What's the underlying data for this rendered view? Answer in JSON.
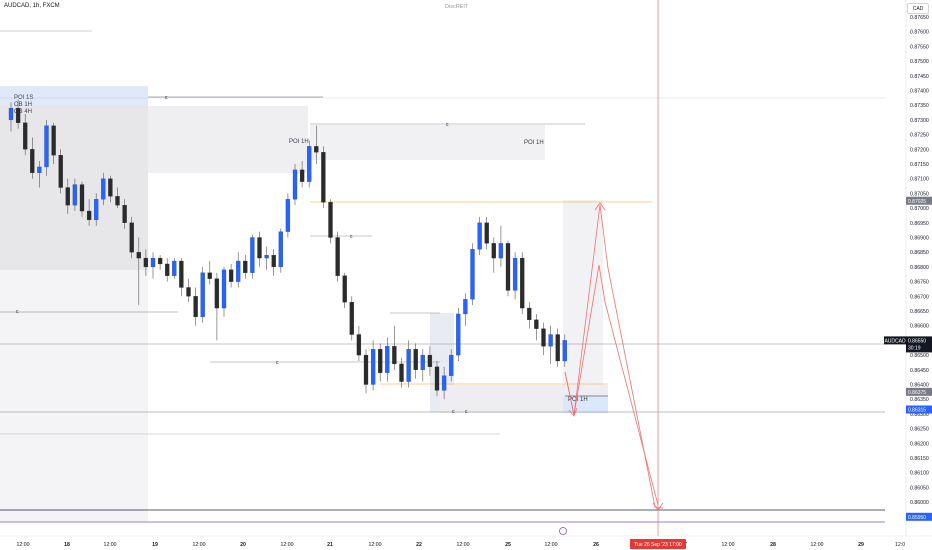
{
  "header": {
    "ticker": "AUDCAD, 1h, FXCM",
    "watermark": "DiscREIT",
    "currency": "CAD"
  },
  "chart_data": {
    "type": "candlestick",
    "y_axis": {
      "ticks": [
        "0.87650",
        "0.87600",
        "0.87550",
        "0.87500",
        "0.87450",
        "0.87400",
        "0.87350",
        "0.87300",
        "0.87250",
        "0.87200",
        "0.87150",
        "0.87100",
        "0.87050",
        "0.87000",
        "0.86950",
        "0.86900",
        "0.86850",
        "0.86800",
        "0.86750",
        "0.86700",
        "0.86650",
        "0.86600",
        "0.86550",
        "0.86500",
        "0.86450",
        "0.86400",
        "0.86350",
        "0.86300",
        "0.86250",
        "0.86200",
        "0.86150",
        "0.86100",
        "0.86050",
        "0.86000",
        "0.85950"
      ],
      "range": [
        0.85935,
        0.8768
      ]
    },
    "x_axis": {
      "labels": [
        "12:00",
        "18",
        "12:00",
        "19",
        "12:00",
        "20",
        "12:00",
        "21",
        "12:00",
        "22",
        "12:00",
        "25",
        "12:00",
        "26",
        "12:00",
        "27",
        "12:00",
        "28",
        "12:00",
        "29",
        "12:0"
      ],
      "crosshair_label": "Tue 26 Sep '23   17:00"
    },
    "price_tags": [
      {
        "price": "0.87025",
        "kind": "gray"
      },
      {
        "price": "0.86550",
        "kind": "dark",
        "countdown": "30:19",
        "name": "AUDCAD"
      },
      {
        "price": "0.86375",
        "kind": "gray"
      },
      {
        "price": "0.86315",
        "kind": "blue"
      },
      {
        "price": "0.85950",
        "kind": "blue"
      }
    ],
    "zone_labels": [
      "POI 1S",
      "OB 1H",
      "OB 4H",
      "POI 1H",
      "POI 1H",
      "POI 1H"
    ],
    "candles": [
      [
        0.873,
        0.8736,
        0.8726,
        0.8734
      ],
      [
        0.8734,
        0.8737,
        0.8727,
        0.8729
      ],
      [
        0.8729,
        0.8732,
        0.8718,
        0.872
      ],
      [
        0.872,
        0.8724,
        0.871,
        0.8712
      ],
      [
        0.8712,
        0.8716,
        0.8707,
        0.8714
      ],
      [
        0.8714,
        0.873,
        0.8711,
        0.8728
      ],
      [
        0.8728,
        0.8729,
        0.8715,
        0.8718
      ],
      [
        0.8718,
        0.872,
        0.8705,
        0.8707
      ],
      [
        0.8707,
        0.871,
        0.8698,
        0.8701
      ],
      [
        0.8701,
        0.871,
        0.8699,
        0.8708
      ],
      [
        0.8708,
        0.8709,
        0.8697,
        0.8699
      ],
      [
        0.8699,
        0.8703,
        0.8694,
        0.8696
      ],
      [
        0.8696,
        0.8705,
        0.8694,
        0.8703
      ],
      [
        0.8703,
        0.8712,
        0.8701,
        0.871
      ],
      [
        0.871,
        0.8711,
        0.8702,
        0.8704
      ],
      [
        0.8704,
        0.8707,
        0.87,
        0.8701
      ],
      [
        0.8701,
        0.8703,
        0.8693,
        0.8695
      ],
      [
        0.8695,
        0.8697,
        0.8683,
        0.8685
      ],
      [
        0.8685,
        0.869,
        0.8667,
        0.8683
      ],
      [
        0.8683,
        0.8686,
        0.8677,
        0.868
      ],
      [
        0.868,
        0.8685,
        0.8676,
        0.8683
      ],
      [
        0.8683,
        0.8684,
        0.8679,
        0.8681
      ],
      [
        0.8681,
        0.8683,
        0.8675,
        0.8677
      ],
      [
        0.8677,
        0.8683,
        0.8676,
        0.8682
      ],
      [
        0.8682,
        0.8683,
        0.867,
        0.8673
      ],
      [
        0.8673,
        0.8676,
        0.8668,
        0.867
      ],
      [
        0.867,
        0.8673,
        0.866,
        0.8663
      ],
      [
        0.8663,
        0.868,
        0.8661,
        0.8678
      ],
      [
        0.8678,
        0.8682,
        0.8674,
        0.8676
      ],
      [
        0.8676,
        0.8678,
        0.8655,
        0.8666
      ],
      [
        0.8666,
        0.868,
        0.8663,
        0.8679
      ],
      [
        0.8679,
        0.8681,
        0.8673,
        0.8675
      ],
      [
        0.8675,
        0.8685,
        0.8673,
        0.8682
      ],
      [
        0.8682,
        0.8684,
        0.8676,
        0.8678
      ],
      [
        0.8678,
        0.8691,
        0.8676,
        0.869
      ],
      [
        0.869,
        0.8692,
        0.868,
        0.8683
      ],
      [
        0.8683,
        0.8687,
        0.8679,
        0.8684
      ],
      [
        0.8684,
        0.8686,
        0.8677,
        0.868
      ],
      [
        0.868,
        0.8693,
        0.8678,
        0.8692
      ],
      [
        0.8692,
        0.8705,
        0.869,
        0.8703
      ],
      [
        0.8703,
        0.8715,
        0.8701,
        0.8713
      ],
      [
        0.8713,
        0.8716,
        0.8707,
        0.8709
      ],
      [
        0.8709,
        0.8723,
        0.8707,
        0.8721
      ],
      [
        0.8721,
        0.8728,
        0.8715,
        0.8719
      ],
      [
        0.8719,
        0.8721,
        0.87,
        0.8702
      ],
      [
        0.8702,
        0.8703,
        0.8688,
        0.869
      ],
      [
        0.869,
        0.8692,
        0.8675,
        0.8677
      ],
      [
        0.8677,
        0.8678,
        0.8666,
        0.8668
      ],
      [
        0.8668,
        0.867,
        0.8655,
        0.8657
      ],
      [
        0.8657,
        0.866,
        0.8648,
        0.865
      ],
      [
        0.865,
        0.8652,
        0.8637,
        0.864
      ],
      [
        0.864,
        0.8655,
        0.8638,
        0.8652
      ],
      [
        0.8652,
        0.8654,
        0.8641,
        0.8644
      ],
      [
        0.8644,
        0.8656,
        0.8641,
        0.8653
      ],
      [
        0.8653,
        0.866,
        0.8645,
        0.8647
      ],
      [
        0.8647,
        0.8649,
        0.8639,
        0.8641
      ],
      [
        0.8641,
        0.8655,
        0.8639,
        0.8652
      ],
      [
        0.8652,
        0.8654,
        0.8642,
        0.8645
      ],
      [
        0.8645,
        0.8652,
        0.8641,
        0.865
      ],
      [
        0.865,
        0.8653,
        0.8643,
        0.8646
      ],
      [
        0.8646,
        0.8648,
        0.8636,
        0.8638
      ],
      [
        0.8638,
        0.8646,
        0.8635,
        0.8643
      ],
      [
        0.8643,
        0.8652,
        0.8641,
        0.865
      ],
      [
        0.865,
        0.8666,
        0.8648,
        0.8664
      ],
      [
        0.8664,
        0.8671,
        0.866,
        0.8669
      ],
      [
        0.8669,
        0.8688,
        0.8667,
        0.8686
      ],
      [
        0.8686,
        0.8697,
        0.8684,
        0.8695
      ],
      [
        0.8695,
        0.8697,
        0.8686,
        0.8688
      ],
      [
        0.8688,
        0.869,
        0.8678,
        0.8683
      ],
      [
        0.8683,
        0.8694,
        0.868,
        0.8688
      ],
      [
        0.8688,
        0.8689,
        0.867,
        0.8672
      ],
      [
        0.8672,
        0.8685,
        0.8669,
        0.8683
      ],
      [
        0.8683,
        0.8685,
        0.8664,
        0.8666
      ],
      [
        0.8666,
        0.8668,
        0.8659,
        0.8662
      ],
      [
        0.8662,
        0.8664,
        0.8655,
        0.8659
      ],
      [
        0.8659,
        0.8661,
        0.865,
        0.8653
      ],
      [
        0.8653,
        0.866,
        0.8647,
        0.8657
      ],
      [
        0.8657,
        0.8659,
        0.8646,
        0.8648
      ],
      [
        0.8648,
        0.8657,
        0.8646,
        0.8655
      ]
    ],
    "projection": [
      [
        "26 03:00",
        0.8645
      ],
      [
        "26 05:00",
        0.8636
      ],
      [
        "26 12:00",
        0.87025
      ],
      [
        "26 13:00",
        0.8699
      ],
      [
        "26 17:00",
        0.86
      ],
      [
        "26 18:00",
        0.8599
      ]
    ]
  }
}
